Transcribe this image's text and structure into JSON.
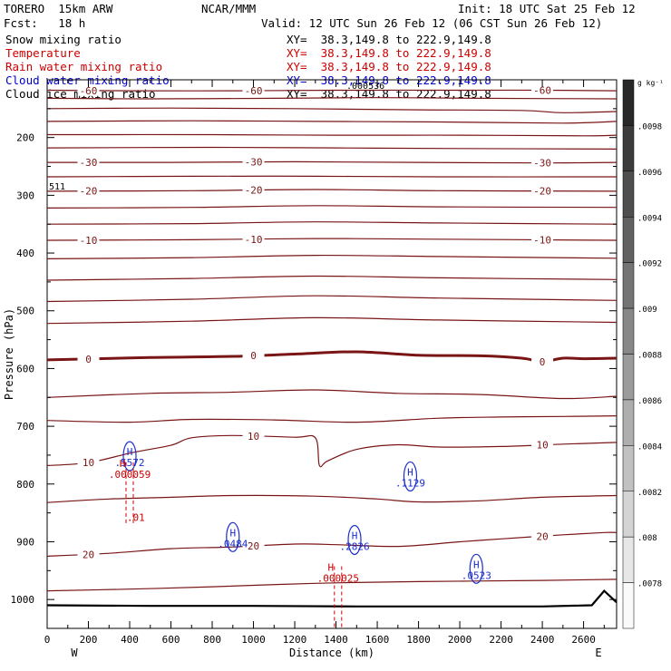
{
  "header": {
    "model": "TORERO  15km ARW",
    "org": "NCAR/MMM",
    "init": "Init: 18 UTC Sat 25 Feb 12",
    "fcst": "Fcst:   18 h",
    "valid": "Valid: 12 UTC Sun 26 Feb 12 (06 CST Sun 26 Feb 12)",
    "fields": [
      {
        "name": "Snow mixing ratio",
        "xy": "XY=  38.3,149.8 to 222.9,149.8",
        "color": "#000000"
      },
      {
        "name": "Temperature",
        "xy": "XY=  38.3,149.8 to 222.9,149.8",
        "color": "#cc0000"
      },
      {
        "name": "Rain water mixing ratio",
        "xy": "XY=  38.3,149.8 to 222.9,149.8",
        "color": "#cc0000"
      },
      {
        "name": "Cloud water mixing ratio",
        "xy": "XY=  38.3,149.8 to 222.9,149.8",
        "color": "#0000cc"
      },
      {
        "name": "Cloud ice mixing ratio",
        "xy": "XY=  38.3,149.8 to 222.9,149.8",
        "color": "#000000"
      }
    ],
    "overlay_value": ".000536"
  },
  "chart_data": {
    "type": "contour",
    "xlabel": "Distance (km)",
    "ylabel": "Pressure (hPa)",
    "xlim": [
      0,
      2760
    ],
    "ylim": [
      1050,
      100
    ],
    "xticks": [
      0,
      200,
      400,
      600,
      800,
      1000,
      1200,
      1400,
      1600,
      1800,
      2000,
      2200,
      2400,
      2600
    ],
    "yticks": [
      200,
      300,
      400,
      500,
      600,
      700,
      800,
      900,
      1000
    ],
    "x_end_labels": {
      "left": "W",
      "right": "E"
    },
    "side_label": "511",
    "colorbar": {
      "units": "g kg⁻¹",
      "ticks": [
        ".0098",
        ".0096",
        ".0094",
        ".0092",
        ".009",
        ".0088",
        ".0086",
        ".0084",
        ".0082",
        ".008",
        ".0078"
      ]
    },
    "temperature_contours": [
      {
        "label": "-60",
        "pts": [
          [
            0,
            118
          ],
          [
            400,
            119
          ],
          [
            900,
            119
          ],
          [
            1400,
            118
          ],
          [
            2000,
            118
          ],
          [
            2400,
            118
          ],
          [
            2760,
            119
          ]
        ]
      },
      {
        "label": "",
        "pts": [
          [
            0,
            132
          ],
          [
            500,
            133
          ],
          [
            1100,
            132
          ],
          [
            1600,
            131
          ],
          [
            2100,
            132
          ],
          [
            2760,
            133
          ]
        ]
      },
      {
        "label": "",
        "pts": [
          [
            0,
            150
          ],
          [
            600,
            149
          ],
          [
            1200,
            150
          ],
          [
            1800,
            152
          ],
          [
            2300,
            153
          ],
          [
            2500,
            157
          ],
          [
            2760,
            155
          ]
        ]
      },
      {
        "label": "",
        "pts": [
          [
            0,
            172
          ],
          [
            700,
            171
          ],
          [
            1300,
            172
          ],
          [
            1900,
            173
          ],
          [
            2500,
            175
          ],
          [
            2760,
            172
          ]
        ]
      },
      {
        "label": "",
        "pts": [
          [
            0,
            195
          ],
          [
            800,
            195
          ],
          [
            1400,
            196
          ],
          [
            2000,
            196
          ],
          [
            2600,
            197
          ],
          [
            2760,
            196
          ]
        ]
      },
      {
        "label": "",
        "pts": [
          [
            0,
            218
          ],
          [
            800,
            217
          ],
          [
            1400,
            218
          ],
          [
            2000,
            219
          ],
          [
            2760,
            220
          ]
        ]
      },
      {
        "label": "-30",
        "pts": [
          [
            0,
            243
          ],
          [
            600,
            243
          ],
          [
            1200,
            242
          ],
          [
            1800,
            243
          ],
          [
            2400,
            244
          ],
          [
            2760,
            243
          ]
        ]
      },
      {
        "label": "",
        "pts": [
          [
            0,
            268
          ],
          [
            700,
            267
          ],
          [
            1300,
            267
          ],
          [
            1900,
            268
          ],
          [
            2760,
            268
          ]
        ]
      },
      {
        "label": "-20",
        "pts": [
          [
            0,
            293
          ],
          [
            700,
            292
          ],
          [
            1300,
            290
          ],
          [
            1900,
            292
          ],
          [
            2760,
            293
          ]
        ]
      },
      {
        "label": "",
        "pts": [
          [
            0,
            322
          ],
          [
            700,
            321
          ],
          [
            1300,
            318
          ],
          [
            1900,
            320
          ],
          [
            2760,
            321
          ]
        ]
      },
      {
        "label": "",
        "pts": [
          [
            0,
            350
          ],
          [
            700,
            349
          ],
          [
            1300,
            346
          ],
          [
            1900,
            348
          ],
          [
            2760,
            350
          ]
        ]
      },
      {
        "label": "-10",
        "pts": [
          [
            0,
            378
          ],
          [
            700,
            377
          ],
          [
            1300,
            375
          ],
          [
            1900,
            376
          ],
          [
            2760,
            378
          ]
        ]
      },
      {
        "label": "",
        "pts": [
          [
            0,
            410
          ],
          [
            700,
            408
          ],
          [
            1300,
            404
          ],
          [
            1900,
            406
          ],
          [
            2760,
            409
          ]
        ]
      },
      {
        "label": "",
        "pts": [
          [
            0,
            447
          ],
          [
            700,
            444
          ],
          [
            1300,
            440
          ],
          [
            1900,
            443
          ],
          [
            2760,
            446
          ]
        ]
      },
      {
        "label": "",
        "pts": [
          [
            0,
            484
          ],
          [
            700,
            480
          ],
          [
            1300,
            474
          ],
          [
            1900,
            478
          ],
          [
            2760,
            482
          ]
        ]
      },
      {
        "label": "",
        "pts": [
          [
            0,
            522
          ],
          [
            700,
            518
          ],
          [
            1300,
            512
          ],
          [
            1900,
            516
          ],
          [
            2760,
            520
          ]
        ]
      },
      {
        "label": "0",
        "pts": [
          [
            0,
            585
          ],
          [
            500,
            581
          ],
          [
            900,
            579
          ],
          [
            1200,
            575
          ],
          [
            1500,
            571
          ],
          [
            1800,
            577
          ],
          [
            2100,
            578
          ],
          [
            2300,
            582
          ],
          [
            2400,
            588
          ],
          [
            2500,
            582
          ],
          [
            2600,
            583
          ],
          [
            2760,
            582
          ]
        ]
      },
      {
        "label": "",
        "pts": [
          [
            0,
            650
          ],
          [
            500,
            643
          ],
          [
            900,
            641
          ],
          [
            1300,
            637
          ],
          [
            1700,
            643
          ],
          [
            2100,
            645
          ],
          [
            2500,
            652
          ],
          [
            2760,
            648
          ]
        ]
      },
      {
        "label": "",
        "pts": [
          [
            0,
            690
          ],
          [
            400,
            693
          ],
          [
            700,
            688
          ],
          [
            1100,
            689
          ],
          [
            1500,
            693
          ],
          [
            1900,
            686
          ],
          [
            2200,
            684
          ],
          [
            2500,
            683
          ],
          [
            2760,
            682
          ]
        ]
      },
      {
        "label": "10",
        "pts": [
          [
            0,
            768
          ],
          [
            200,
            763
          ],
          [
            420,
            745
          ],
          [
            600,
            733
          ],
          [
            700,
            720
          ],
          [
            900,
            716
          ],
          [
            1200,
            719
          ],
          [
            1300,
            720
          ],
          [
            1320,
            768
          ],
          [
            1360,
            760
          ],
          [
            1500,
            740
          ],
          [
            1700,
            732
          ],
          [
            1900,
            736
          ],
          [
            2200,
            735
          ],
          [
            2500,
            731
          ],
          [
            2760,
            728
          ]
        ]
      },
      {
        "label": "",
        "pts": [
          [
            0,
            832
          ],
          [
            300,
            826
          ],
          [
            600,
            823
          ],
          [
            900,
            820
          ],
          [
            1300,
            821
          ],
          [
            1600,
            826
          ],
          [
            1800,
            831
          ],
          [
            2100,
            829
          ],
          [
            2400,
            823
          ],
          [
            2760,
            820
          ]
        ]
      },
      {
        "label": "20",
        "pts": [
          [
            0,
            925
          ],
          [
            300,
            920
          ],
          [
            600,
            912
          ],
          [
            900,
            909
          ],
          [
            1200,
            904
          ],
          [
            1400,
            905
          ],
          [
            1700,
            908
          ],
          [
            2000,
            900
          ],
          [
            2200,
            895
          ],
          [
            2500,
            888
          ],
          [
            2700,
            884
          ],
          [
            2760,
            884
          ]
        ]
      },
      {
        "label": "",
        "pts": [
          [
            0,
            985
          ],
          [
            400,
            982
          ],
          [
            800,
            978
          ],
          [
            1300,
            972
          ],
          [
            1800,
            969
          ],
          [
            2400,
            967
          ],
          [
            2760,
            965
          ]
        ]
      }
    ],
    "cloud_water_maxima": [
      {
        "marker": "H",
        "value": ".5572",
        "x": 400,
        "p": 755
      },
      {
        "marker": "H",
        "value": ".1129",
        "x": 1760,
        "p": 790
      },
      {
        "marker": "H",
        "value": ".0484",
        "x": 900,
        "p": 895
      },
      {
        "marker": "H",
        "value": ".2826",
        "x": 1490,
        "p": 900
      },
      {
        "marker": "H",
        "value": ".0523",
        "x": 2080,
        "p": 950
      }
    ],
    "rain_maxima": [
      {
        "marker": "H",
        "value": ".000059",
        "x": 400,
        "p": 775
      },
      {
        "marker": "",
        "value": ".01",
        "x": 430,
        "p": 850
      },
      {
        "marker": "H",
        "value": ".000025",
        "x": 1410,
        "p": 955
      }
    ],
    "surface_line": [
      [
        0,
        1010
      ],
      [
        500,
        1011
      ],
      [
        1000,
        1011
      ],
      [
        1500,
        1012
      ],
      [
        2000,
        1012
      ],
      [
        2400,
        1012
      ],
      [
        2640,
        1010
      ],
      [
        2700,
        985
      ],
      [
        2760,
        1005
      ]
    ]
  }
}
